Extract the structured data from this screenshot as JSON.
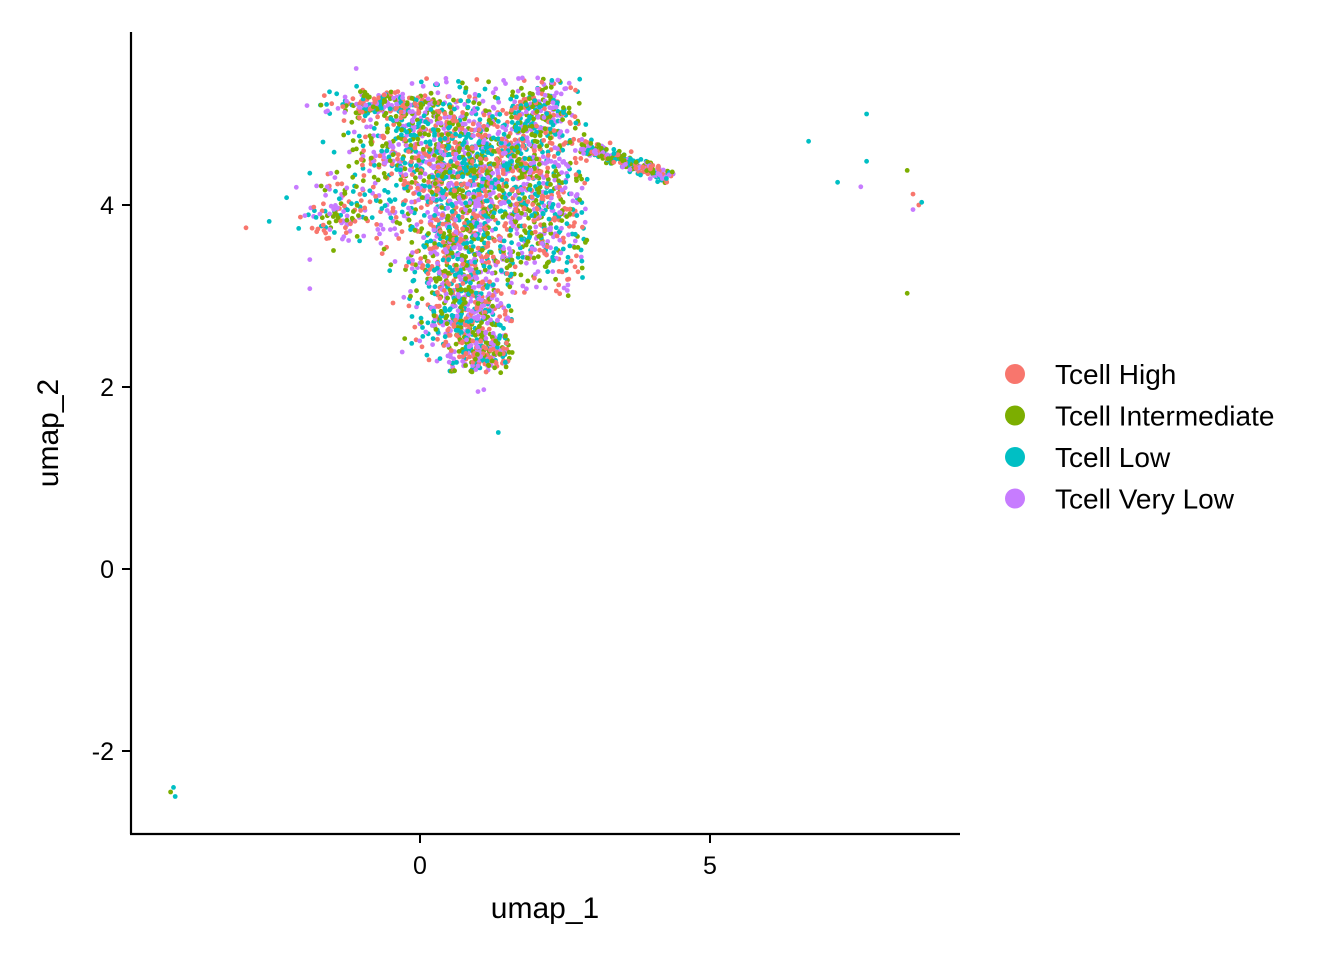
{
  "chart_data": {
    "type": "scatter",
    "title": "",
    "xlabel": "umap_1",
    "ylabel": "umap_2",
    "xlim": [
      -5,
      9.3
    ],
    "ylim": [
      -2.9,
      5.9
    ],
    "x_ticks": [
      0,
      5
    ],
    "y_ticks": [
      -2,
      0,
      2,
      4
    ],
    "x_tick_labels": [
      "0",
      "5"
    ],
    "y_tick_labels": [
      "-2",
      "0",
      "2",
      "4"
    ],
    "grid": false,
    "legend_position": "right",
    "series": [
      {
        "name": "Tcell High",
        "color": "#F8766D",
        "points": []
      },
      {
        "name": "Tcell Intermediate",
        "color": "#7CAE00",
        "points": []
      },
      {
        "name": "Tcell Low",
        "color": "#00BFC4",
        "points": []
      },
      {
        "name": "Tcell Very Low",
        "color": "#C77CFF",
        "points": []
      }
    ],
    "outliers": [
      {
        "series": 0,
        "x": -3.0,
        "y": 3.75
      },
      {
        "series": 2,
        "x": -2.6,
        "y": 3.82
      },
      {
        "series": 2,
        "x": -2.3,
        "y": 4.08
      },
      {
        "series": 1,
        "x": -4.3,
        "y": -2.45
      },
      {
        "series": 2,
        "x": -4.25,
        "y": -2.4
      },
      {
        "series": 2,
        "x": -4.22,
        "y": -2.5
      },
      {
        "series": 2,
        "x": 1.35,
        "y": 1.5
      },
      {
        "series": 2,
        "x": 6.7,
        "y": 4.7
      },
      {
        "series": 2,
        "x": 7.2,
        "y": 4.25
      },
      {
        "series": 2,
        "x": 7.7,
        "y": 5.0
      },
      {
        "series": 2,
        "x": 7.7,
        "y": 4.48
      },
      {
        "series": 3,
        "x": 7.6,
        "y": 4.2
      },
      {
        "series": 1,
        "x": 8.4,
        "y": 4.38
      },
      {
        "series": 0,
        "x": 8.5,
        "y": 4.12
      },
      {
        "series": 0,
        "x": 8.6,
        "y": 4.0
      },
      {
        "series": 3,
        "x": 8.5,
        "y": 3.95
      },
      {
        "series": 2,
        "x": 8.65,
        "y": 4.03
      },
      {
        "series": 1,
        "x": 8.4,
        "y": 3.03
      },
      {
        "series": 3,
        "x": -1.1,
        "y": 5.5
      },
      {
        "series": 3,
        "x": -1.9,
        "y": 3.08
      },
      {
        "series": 3,
        "x": -1.9,
        "y": 3.4
      },
      {
        "series": 3,
        "x": 1.0,
        "y": 1.95
      },
      {
        "series": 3,
        "x": 1.1,
        "y": 1.97
      },
      {
        "series": 2,
        "x": -1.9,
        "y": 4.35
      },
      {
        "series": 3,
        "x": -1.6,
        "y": 4.2
      }
    ]
  }
}
